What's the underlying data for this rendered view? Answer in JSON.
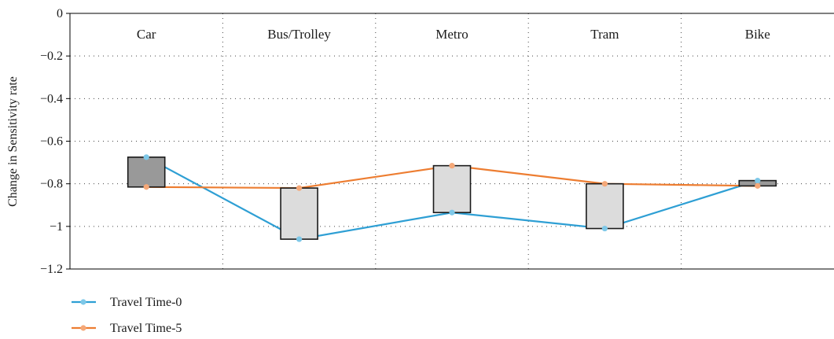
{
  "chart_data": {
    "type": "line",
    "categories": [
      "Car",
      "Bus/Trolley",
      "Metro",
      "Tram",
      "Bike"
    ],
    "series": [
      {
        "name": "Travel Time-0",
        "color": "#2e9fd4",
        "marker_color": "#7ec8e8",
        "values": [
          -0.675,
          -1.06,
          -0.935,
          -1.01,
          -0.785
        ]
      },
      {
        "name": "Travel Time-5",
        "color": "#ed7d31",
        "marker_color": "#f5a878",
        "values": [
          -0.815,
          -0.82,
          -0.715,
          -0.8,
          -0.81
        ]
      }
    ],
    "boxes": [
      {
        "low": -0.815,
        "high": -0.675,
        "fill": "#999999"
      },
      {
        "low": -1.06,
        "high": -0.82,
        "fill": "#dcdcdc"
      },
      {
        "low": -0.935,
        "high": -0.715,
        "fill": "#dcdcdc"
      },
      {
        "low": -1.01,
        "high": -0.8,
        "fill": "#dcdcdc"
      },
      {
        "low": -0.81,
        "high": -0.785,
        "fill": "#999999"
      }
    ],
    "ylabel": "Change in Sensitivity rate",
    "ylim": [
      -1.2,
      0
    ],
    "yticks": [
      0,
      -0.2,
      -0.4,
      -0.6,
      -0.8,
      -1,
      -1.2
    ],
    "ytick_labels": [
      "0",
      "−0.2",
      "−0.4",
      "−0.6",
      "−0.8",
      "−1",
      "−1.2"
    ],
    "grid": true,
    "legend_position": "bottom-left"
  }
}
